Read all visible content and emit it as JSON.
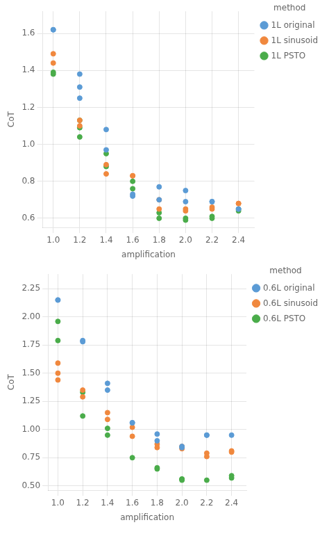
{
  "chart_data": [
    {
      "type": "scatter",
      "xlabel": "amplification",
      "ylabel": "CoT",
      "xlim": [
        0.92,
        2.52
      ],
      "xticks": [
        {
          "value": 1.0,
          "label": "1.0"
        },
        1.2,
        1.4,
        1.6,
        1.8,
        {
          "value": 2.0,
          "label": "2.0"
        },
        2.2,
        2.4
      ],
      "ylim": [
        0.55,
        1.72
      ],
      "yticks": [
        0.6,
        0.8,
        {
          "value": 1.0,
          "label": "1.0"
        },
        1.2,
        1.4,
        1.6
      ],
      "grid": true,
      "legend": "right",
      "legend_title": "method",
      "series": [
        {
          "name": "1L original",
          "color": "#5b9bd5",
          "x": [
            1.0,
            1.0,
            1.2,
            1.2,
            1.2,
            1.4,
            1.4,
            1.6,
            1.6,
            1.8,
            1.8,
            2.0,
            2.0,
            2.2,
            2.2,
            2.4,
            2.4
          ],
          "values": [
            1.62,
            1.62,
            1.38,
            1.31,
            1.25,
            1.08,
            0.97,
            0.73,
            0.72,
            0.77,
            0.7,
            0.75,
            0.69,
            0.69,
            0.69,
            0.65,
            0.65
          ]
        },
        {
          "name": "1L sinusoid",
          "color": "#f0883e",
          "x": [
            1.0,
            1.0,
            1.2,
            1.2,
            1.4,
            1.4,
            1.6,
            1.6,
            1.8,
            1.8,
            2.0,
            2.0,
            2.2,
            2.2,
            2.4,
            2.4
          ],
          "values": [
            1.49,
            1.44,
            1.13,
            1.1,
            0.89,
            0.84,
            0.83,
            0.83,
            0.7,
            0.65,
            0.65,
            0.64,
            0.66,
            0.65,
            0.68,
            0.68
          ]
        },
        {
          "name": "1L PSTO",
          "color": "#4aac4a",
          "x": [
            1.0,
            1.0,
            1.2,
            1.2,
            1.2,
            1.4,
            1.4,
            1.6,
            1.6,
            1.8,
            1.8,
            2.0,
            2.0,
            2.2,
            2.2,
            2.4,
            2.4
          ],
          "values": [
            1.39,
            1.38,
            1.13,
            1.09,
            1.04,
            0.95,
            0.88,
            0.8,
            0.76,
            0.63,
            0.6,
            0.6,
            0.59,
            0.61,
            0.6,
            0.65,
            0.64
          ]
        }
      ]
    },
    {
      "type": "scatter",
      "xlabel": "amplification",
      "ylabel": "CoT",
      "xlim": [
        0.92,
        2.52
      ],
      "xticks": [
        {
          "value": 1.0,
          "label": "1.0"
        },
        1.2,
        1.4,
        1.6,
        1.8,
        {
          "value": 2.0,
          "label": "2.0"
        },
        2.2,
        2.4
      ],
      "ylim": [
        0.46,
        2.38
      ],
      "yticks": [
        {
          "value": 0.5,
          "label": "0.50"
        },
        0.75,
        {
          "value": 1.0,
          "label": "1.00"
        },
        1.25,
        {
          "value": 1.5,
          "label": "1.50"
        },
        1.75,
        {
          "value": 2.0,
          "label": "2.00"
        },
        2.25
      ],
      "grid": true,
      "legend": "right",
      "legend_title": "method",
      "series": [
        {
          "name": "0.6L original",
          "color": "#5b9bd5",
          "x": [
            1.0,
            1.0,
            1.2,
            1.2,
            1.4,
            1.4,
            1.6,
            1.6,
            1.8,
            1.8,
            2.0,
            2.0,
            2.2,
            2.2,
            2.4
          ],
          "values": [
            2.15,
            2.15,
            1.79,
            1.78,
            1.41,
            1.35,
            1.06,
            1.06,
            0.96,
            0.9,
            0.85,
            0.84,
            0.95,
            0.95,
            0.95
          ]
        },
        {
          "name": "0.6L sinusoid",
          "color": "#f0883e",
          "x": [
            1.0,
            1.0,
            1.0,
            1.2,
            1.2,
            1.4,
            1.4,
            1.6,
            1.6,
            1.8,
            1.8,
            2.0,
            2.0,
            2.2,
            2.2,
            2.4,
            2.4
          ],
          "values": [
            1.59,
            1.5,
            1.44,
            1.35,
            1.29,
            1.15,
            1.09,
            1.02,
            0.94,
            0.87,
            0.84,
            0.85,
            0.83,
            0.79,
            0.76,
            0.81,
            0.8
          ]
        },
        {
          "name": "0.6L PSTO",
          "color": "#4aac4a",
          "x": [
            1.0,
            1.0,
            1.2,
            1.2,
            1.4,
            1.4,
            1.6,
            1.8,
            1.8,
            2.0,
            2.0,
            2.0,
            2.2,
            2.4,
            2.4
          ],
          "values": [
            1.96,
            1.79,
            1.33,
            1.12,
            1.01,
            0.95,
            0.75,
            0.66,
            0.65,
            0.56,
            0.56,
            0.55,
            0.55,
            0.59,
            0.57
          ]
        }
      ]
    }
  ]
}
